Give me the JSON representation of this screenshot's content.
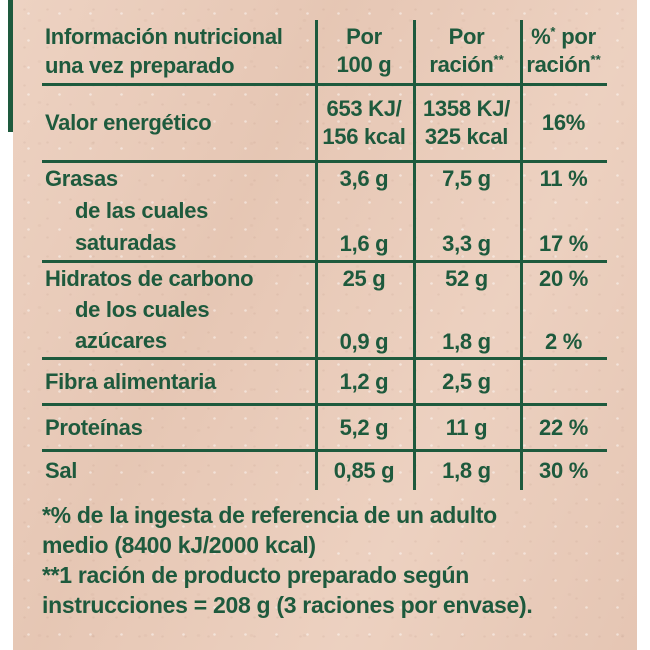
{
  "colors": {
    "paper": "#ebcdbb",
    "ink": "#1e5a3d",
    "edge": "#ffffff"
  },
  "header": {
    "title_line1": "Información nutricional",
    "title_line2": "una vez preparado",
    "per100_line1": "Por",
    "per100_line2": "100 g",
    "racion_line1": "Por",
    "racion_line2": "ración",
    "racion_sup": "**",
    "pct_symbol": "%",
    "pct_sup1": "*",
    "pct_word": "por",
    "pct_line2": "ración",
    "pct_sup2": "**"
  },
  "rows": {
    "energia": {
      "label": "Valor energético",
      "per100_l1": "653 KJ/",
      "per100_l2": "156 kcal",
      "racion_l1": "1358 KJ/",
      "racion_l2": "325 kcal",
      "pct": "16%"
    },
    "grasas": {
      "label": "Grasas",
      "sub_l1": "de las cuales",
      "sub_l2": "saturadas",
      "per100": "3,6 g",
      "racion": "7,5 g",
      "pct": "11 %",
      "sub_per100": "1,6 g",
      "sub_racion": "3,3 g",
      "sub_pct": "17 %"
    },
    "hidratos": {
      "label": "Hidratos de carbono",
      "sub_l1": "de los cuales",
      "sub_l2": "azúcares",
      "per100": "25 g",
      "racion": "52 g",
      "pct": "20 %",
      "sub_per100": "0,9 g",
      "sub_racion": "1,8 g",
      "sub_pct": "2 %"
    },
    "fibra": {
      "label": "Fibra alimentaria",
      "per100": "1,2 g",
      "racion": "2,5 g",
      "pct": ""
    },
    "proteinas": {
      "label": "Proteínas",
      "per100": "5,2 g",
      "racion": "11 g",
      "pct": "22 %"
    },
    "sal": {
      "label": "Sal",
      "per100": "0,85 g",
      "racion": "1,8 g",
      "pct": "30 %"
    }
  },
  "footnotes": {
    "line1": "*% de la ingesta de referencia de un adulto",
    "line2": "medio (8400 kJ/2000 kcal)",
    "line3": "**1 ración de producto preparado según",
    "line4": "instrucciones = 208 g (3 raciones por envase)."
  }
}
